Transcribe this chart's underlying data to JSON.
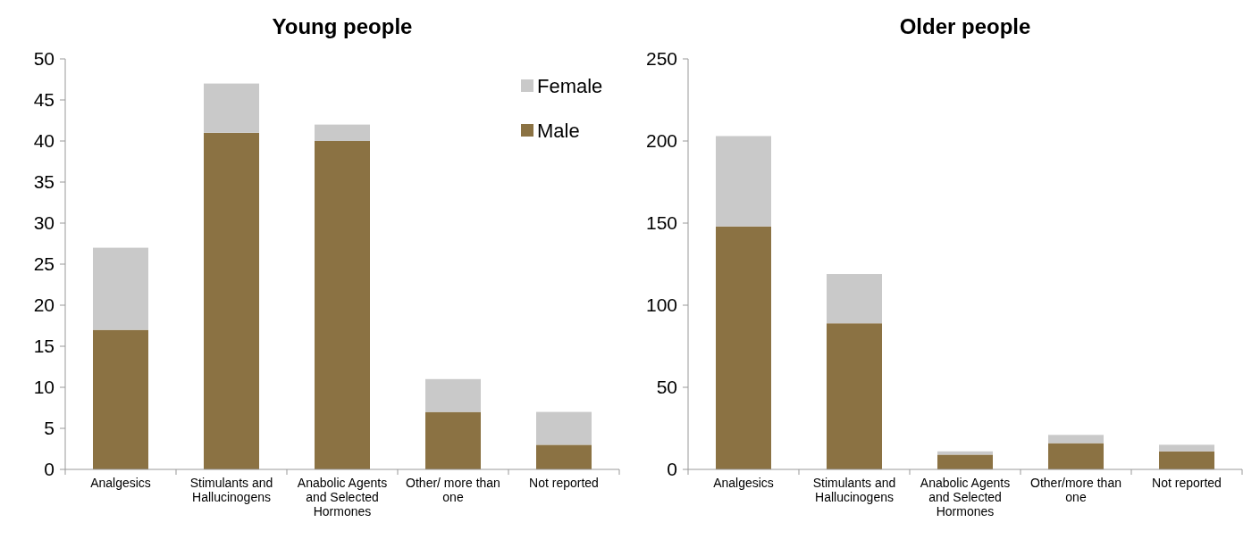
{
  "chart_data": [
    {
      "type": "bar",
      "title": "Young people",
      "categories": [
        "Analgesics",
        "Stimulants and Hallucinogens",
        "Anabolic Agents and Selected Hormones",
        "Other/ more than one",
        "Not reported"
      ],
      "stacked": true,
      "series": [
        {
          "name": "Male",
          "color": "#8b7243",
          "values": [
            17,
            41,
            40,
            7,
            3
          ]
        },
        {
          "name": "Female",
          "color": "#c9c9c9",
          "values": [
            10,
            6,
            2,
            4,
            4
          ]
        }
      ],
      "ylim": [
        0,
        50
      ],
      "yticks": [
        0,
        5,
        10,
        15,
        20,
        25,
        30,
        35,
        40,
        45,
        50
      ],
      "grid": false,
      "legend": "top right"
    },
    {
      "type": "bar",
      "title": "Older people",
      "categories": [
        "Analgesics",
        "Stimulants and Hallucinogens",
        "Anabolic Agents and Selected Hormones",
        "Other/more than one",
        "Not reported"
      ],
      "stacked": true,
      "series": [
        {
          "color": "#8b7243",
          "values": [
            148,
            89,
            9,
            16,
            11
          ]
        },
        {
          "color": "#c9c9c9",
          "values": [
            55,
            30,
            2,
            5,
            4
          ]
        }
      ],
      "ylim": [
        0,
        250
      ],
      "yticks": [
        0,
        50,
        100,
        150,
        200,
        250
      ],
      "grid": false,
      "legend": false
    }
  ]
}
